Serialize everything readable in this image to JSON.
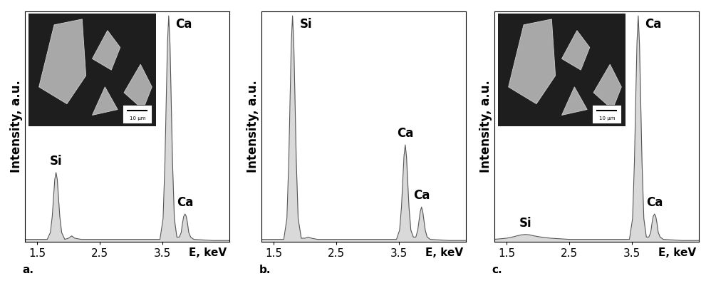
{
  "chart_data": [
    {
      "type": "area",
      "panel": "a.",
      "xlabel": "E, keV",
      "ylabel": "Intensity, a.u.",
      "color": "#d9d9d9",
      "tick_labels": "x",
      "xlim": [
        1.3,
        4.57
      ],
      "xticks": [
        1.5,
        2.5,
        3.5
      ],
      "ylim": [
        0,
        100
      ],
      "x": [
        1.3,
        1.5,
        1.62,
        1.66,
        1.71,
        1.74,
        1.76,
        1.78,
        1.8,
        1.82,
        1.84,
        1.86,
        1.89,
        1.94,
        2.0,
        2.05,
        2.1,
        2.2,
        2.5,
        3.0,
        3.3,
        3.46,
        3.51,
        3.54,
        3.56,
        3.58,
        3.6,
        3.62,
        3.64,
        3.66,
        3.69,
        3.73,
        3.77,
        3.8,
        3.82,
        3.84,
        3.86,
        3.88,
        3.9,
        3.92,
        3.95,
        4.0,
        4.3,
        4.57
      ],
      "values": [
        1,
        1,
        1,
        1,
        4,
        11,
        19,
        27,
        30,
        27,
        19,
        11,
        4,
        1,
        1.5,
        2.5,
        1.5,
        1,
        1,
        1,
        1,
        1,
        10,
        35,
        61,
        86,
        98,
        86,
        61,
        35,
        10,
        2,
        2,
        4,
        8,
        11,
        12,
        11,
        8,
        4,
        2,
        1,
        0.5,
        0.5
      ],
      "annotations": [
        {
          "text": "Si",
          "x": 1.8
        },
        {
          "text": "Ca",
          "x": 3.6
        },
        {
          "text": "Ca",
          "x": 3.86
        }
      ],
      "inset": {
        "scale_bar": "10 µm"
      }
    },
    {
      "type": "area",
      "panel": "b.",
      "xlabel": "E, keV",
      "ylabel": "Intensity, a.u.",
      "color": "#d9d9d9",
      "tick_labels": "x",
      "xlim": [
        1.3,
        4.57
      ],
      "xticks": [
        1.5,
        2.5,
        3.5
      ],
      "ylim": [
        0,
        100
      ],
      "x": [
        1.3,
        1.5,
        1.62,
        1.66,
        1.71,
        1.74,
        1.76,
        1.78,
        1.8,
        1.82,
        1.84,
        1.86,
        1.89,
        1.94,
        2.0,
        2.05,
        2.1,
        2.2,
        2.5,
        3.0,
        3.3,
        3.46,
        3.51,
        3.54,
        3.56,
        3.58,
        3.6,
        3.62,
        3.64,
        3.66,
        3.69,
        3.73,
        3.77,
        3.8,
        3.82,
        3.84,
        3.86,
        3.88,
        3.9,
        3.92,
        3.95,
        4.0,
        4.3,
        4.57
      ],
      "values": [
        1,
        1,
        1,
        1,
        10,
        35,
        61,
        86,
        98,
        86,
        61,
        35,
        10,
        1.5,
        1.5,
        2,
        1.5,
        1,
        1,
        1,
        1,
        1,
        5,
        15,
        26,
        37,
        42,
        37,
        26,
        15,
        5,
        2,
        2,
        5,
        9,
        13,
        15,
        13,
        9,
        5,
        2,
        1,
        0.5,
        0.5
      ],
      "annotations": [
        {
          "text": "Si",
          "x": 1.8
        },
        {
          "text": "Ca",
          "x": 3.6
        },
        {
          "text": "Ca",
          "x": 3.86
        }
      ]
    },
    {
      "type": "area",
      "panel": "c.",
      "xlabel": "E, keV",
      "ylabel": "Intensity, a.u.",
      "color": "#d9d9d9",
      "tick_labels": "x",
      "xlim": [
        1.3,
        4.57
      ],
      "xticks": [
        1.5,
        2.5,
        3.5
      ],
      "ylim": [
        0,
        100
      ],
      "x": [
        1.3,
        1.5,
        1.62,
        1.66,
        1.71,
        1.74,
        1.76,
        1.78,
        1.8,
        1.82,
        1.84,
        1.86,
        1.89,
        1.94,
        2.0,
        2.05,
        2.1,
        2.2,
        2.5,
        3.0,
        3.3,
        3.46,
        3.51,
        3.54,
        3.56,
        3.58,
        3.6,
        3.62,
        3.64,
        3.66,
        3.69,
        3.73,
        3.77,
        3.8,
        3.82,
        3.84,
        3.86,
        3.88,
        3.9,
        3.92,
        3.95,
        4.0,
        4.3,
        4.57
      ],
      "values": [
        1,
        1.5,
        2.2,
        2.5,
        2.8,
        3,
        3,
        3.1,
        3.1,
        3.1,
        3,
        3,
        2.8,
        2.5,
        2.2,
        2,
        1.8,
        1.5,
        1,
        1,
        1,
        1,
        10,
        35,
        61,
        86,
        98,
        86,
        61,
        35,
        10,
        2,
        2,
        4,
        8,
        11,
        12,
        11,
        8,
        4,
        2,
        1,
        0.5,
        0.5
      ],
      "annotations": [
        {
          "text": "Si",
          "x": 1.8
        },
        {
          "text": "Ca",
          "x": 3.6
        },
        {
          "text": "Ca",
          "x": 3.86
        }
      ],
      "inset": {
        "scale_bar": "10 µm"
      }
    }
  ]
}
